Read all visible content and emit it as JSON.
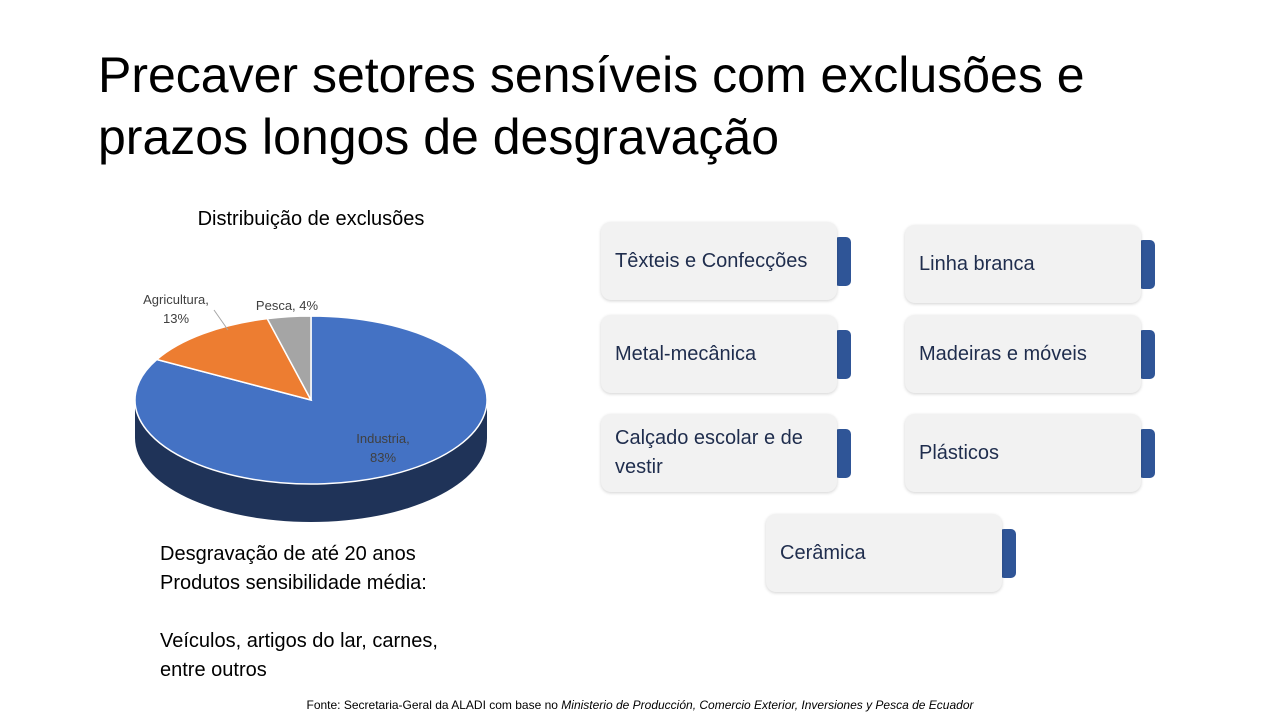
{
  "slide": {
    "title": "Precaver setores sensíveis com exclusões e prazos longos de desgravação"
  },
  "chart_data": {
    "type": "pie",
    "title": "Distribuição de exclusões",
    "labels": [
      "Industria",
      "Agricultura",
      "Pesca"
    ],
    "values": [
      83,
      13,
      4
    ],
    "data_labels": [
      [
        "Industria,",
        "83%"
      ],
      [
        "Agricultura,",
        "13%"
      ],
      [
        "Pesca, 4%"
      ]
    ],
    "colors": [
      "#4472c4",
      "#ed7d31",
      "#a5a5a5"
    ],
    "style": "3d"
  },
  "sectors": [
    {
      "label": "Têxteis e Confecções"
    },
    {
      "label": "Linha branca"
    },
    {
      "label": "Metal-mecânica"
    },
    {
      "label": "Madeiras e móveis"
    },
    {
      "label": "Calçado escolar e de vestir"
    },
    {
      "label": "Plásticos"
    },
    {
      "label": "Cerâmica"
    }
  ],
  "notes": {
    "line1": "Desgravação de até 20 anos",
    "line2": "Produtos sensibilidade média:",
    "line3": "Veículos, artigos do lar, carnes,",
    "line4": "entre outros"
  },
  "source": {
    "prefix": "Fonte: Secretaria-Geral da ALADI com base no ",
    "italic": "Ministerio de Producción, Comercio Exterior, Inversiones y Pesca de Ecuador"
  }
}
